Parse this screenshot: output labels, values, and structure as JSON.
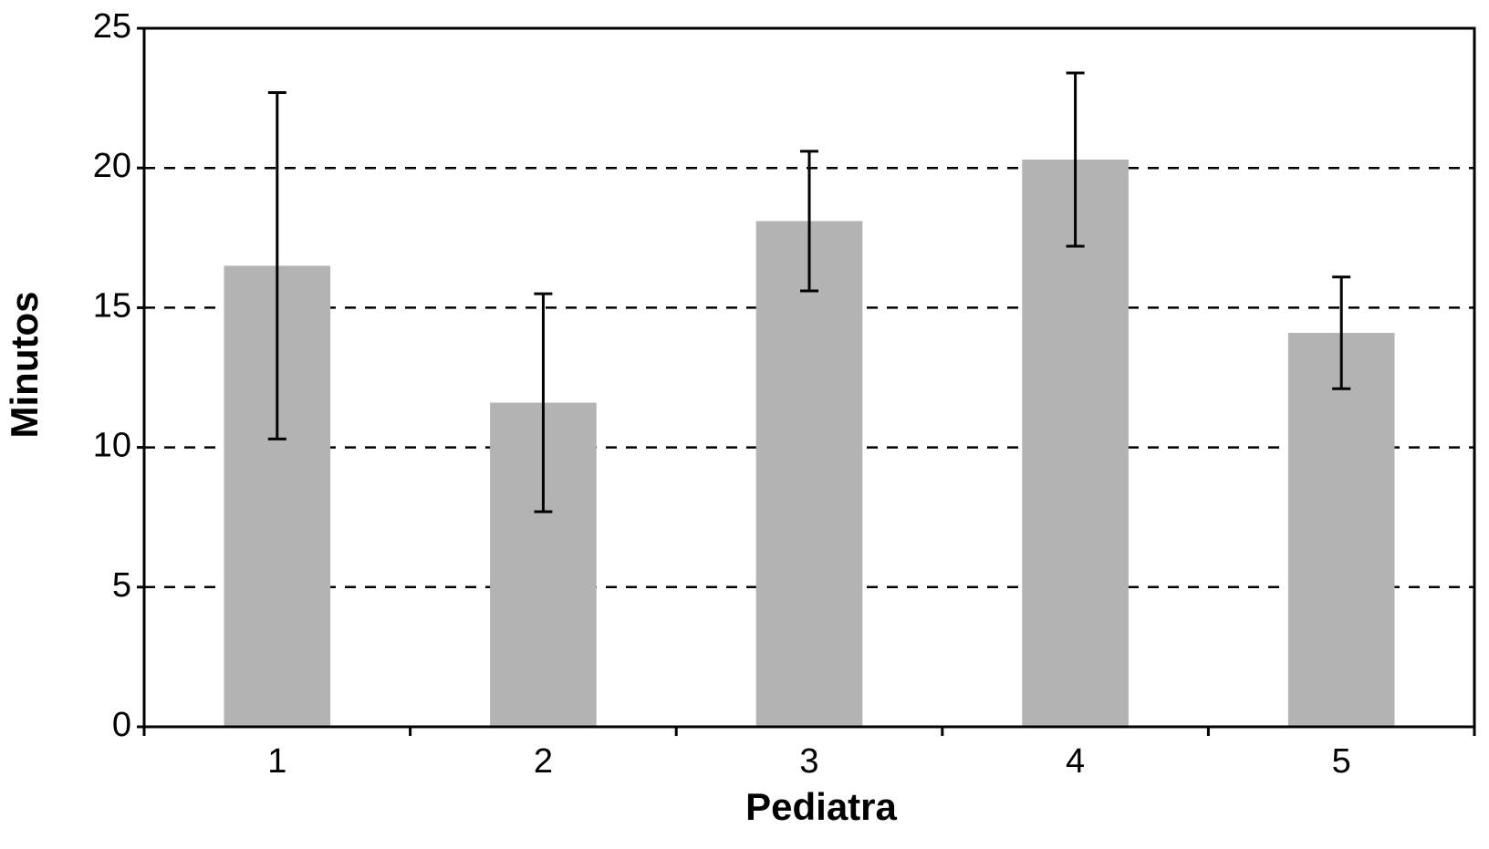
{
  "chart_data": {
    "type": "bar",
    "x_label": "Pediatra",
    "y_label": "Minutos",
    "categories": [
      "1",
      "2",
      "3",
      "4",
      "5"
    ],
    "values": [
      16.5,
      11.6,
      18.1,
      20.3,
      14.1
    ],
    "errors": [
      6.2,
      3.9,
      2.5,
      3.1,
      2.0
    ],
    "color": "#b3b3b3",
    "ylim": [
      0,
      25
    ],
    "yticks": [
      0,
      5,
      10,
      15,
      20,
      25
    ],
    "grid": true
  }
}
